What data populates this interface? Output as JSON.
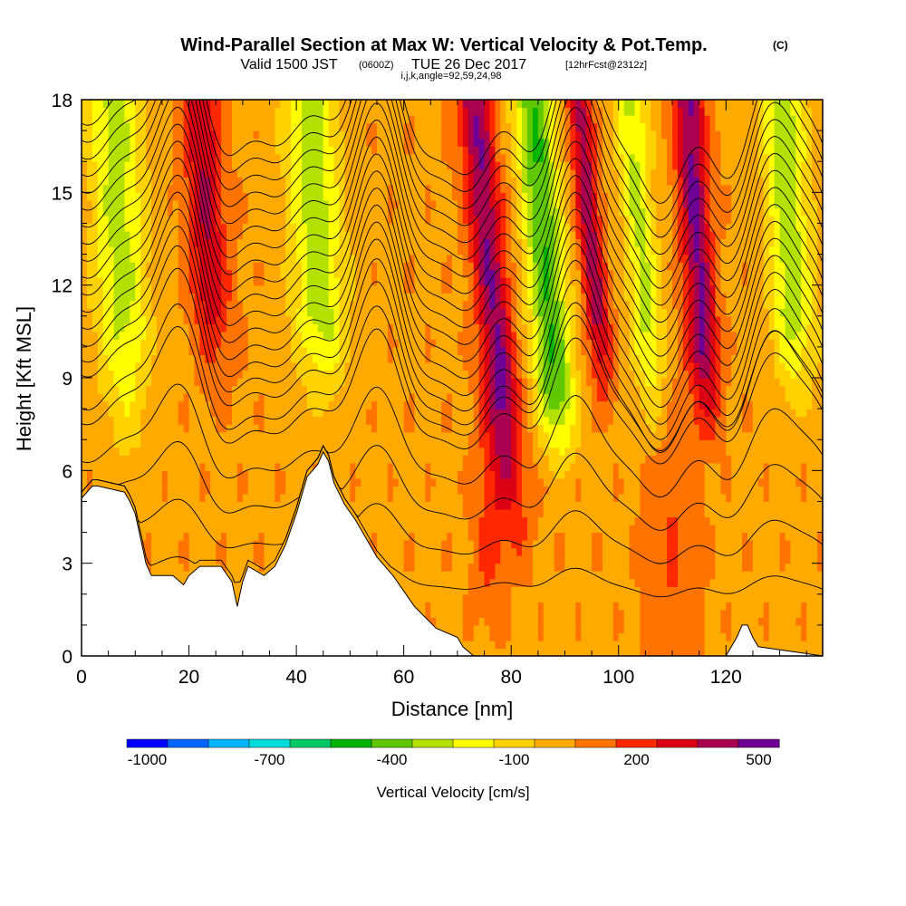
{
  "title": {
    "main": "Wind-Parallel Section at Max W: Vertical Velocity & Pot.Temp.",
    "copyright": "(C)",
    "valid_prefix": "Valid 1500 JST",
    "valid_utc": "(0600Z)",
    "valid_date": "TUE 26 Dec 2017",
    "forecast": "[12hrFcst@2312z]",
    "indices": "i,j,k,angle=92,59,24,98"
  },
  "chart_data": {
    "type": "heatmap",
    "xlabel": "Distance [nm]",
    "ylabel": "Height [Kft MSL]",
    "xlim": [
      0,
      138
    ],
    "ylim": [
      0,
      18
    ],
    "x_ticks": [
      0,
      20,
      40,
      60,
      80,
      100,
      120
    ],
    "y_ticks": [
      0,
      3,
      6,
      9,
      12,
      15,
      18
    ],
    "x_minor_step": 5,
    "y_minor_step": 1,
    "field": "Vertical Velocity",
    "contours": "Potential Temperature",
    "updraft_centers_nm": [
      25,
      78,
      97,
      116
    ],
    "downdraft_centers_nm": [
      6,
      45,
      88,
      132
    ],
    "terrain": {
      "x": [
        0,
        2,
        3,
        8,
        9,
        10,
        11,
        12,
        13,
        14,
        17,
        19,
        20,
        22,
        26,
        28,
        29,
        30,
        31,
        34,
        36,
        38,
        40,
        42,
        44,
        45,
        46,
        47,
        49,
        51,
        53,
        55,
        58,
        62,
        66,
        70,
        71,
        73,
        120,
        121,
        122,
        123,
        124,
        125,
        126,
        138
      ],
      "y": [
        5.1,
        5.5,
        5.5,
        5.3,
        5.0,
        4.6,
        3.8,
        3.0,
        2.6,
        2.6,
        2.6,
        2.3,
        2.6,
        2.9,
        2.9,
        2.4,
        1.6,
        2.4,
        2.9,
        2.6,
        2.9,
        3.6,
        4.6,
        5.8,
        6.2,
        6.6,
        6.3,
        5.6,
        4.9,
        4.4,
        3.8,
        3.2,
        2.6,
        1.6,
        0.9,
        0.6,
        0.3,
        0.0,
        0.0,
        0.3,
        0.6,
        1.0,
        1.0,
        0.6,
        0.3,
        0.0
      ]
    },
    "colorbar": {
      "label": "Vertical Velocity [cm/s]",
      "tick_labels": [
        "-1000",
        "-700",
        "-400",
        "-100",
        "200",
        "500"
      ],
      "tick_index": [
        0,
        3,
        6,
        9,
        12,
        15
      ],
      "colors": [
        "#0000ff",
        "#0066ff",
        "#00b4ff",
        "#00dcdc",
        "#00c864",
        "#00b400",
        "#60c800",
        "#b4e100",
        "#ffff00",
        "#ffd200",
        "#ffaa00",
        "#ff7300",
        "#ff2800",
        "#dc0014",
        "#aa0050",
        "#6e0096"
      ]
    }
  }
}
